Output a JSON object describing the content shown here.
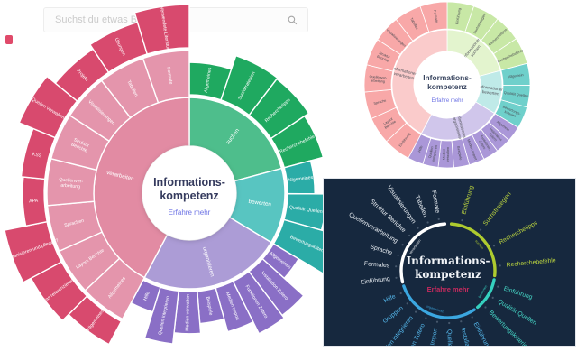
{
  "search": {
    "placeholder": "Suchst du etwas Bestimmtes?"
  },
  "logo": {
    "name": "brand-mark",
    "color": "#E04A6A"
  },
  "chart_data": [
    {
      "type": "sunburst",
      "id": "main",
      "theme": "light",
      "title_lines": [
        "Informations-",
        "kompetenz"
      ],
      "center_link": "Erfahre mehr",
      "title_color": "#353B5E",
      "link_color": "#6C72E4",
      "sections": [
        {
          "name": "suchen",
          "span_deg": 75,
          "colors": {
            "inner": "#4EBE8C",
            "outer": "#1FA960"
          },
          "children": [
            {
              "label": "Allgemeines",
              "len": 0.5
            },
            {
              "label": "Suchstrategien",
              "len": 0.72
            },
            {
              "label": "Recherchetipps",
              "len": 0.7
            },
            {
              "label": "Recherchebefehle",
              "len": 0.62
            }
          ]
        },
        {
          "name": "bewerten",
          "span_deg": 46,
          "colors": {
            "inner": "#58C5C1",
            "outer": "#2BACA7"
          },
          "children": [
            {
              "label": "Allgemeines",
              "len": 0.42
            },
            {
              "label": "Qualität Quellen",
              "len": 0.6
            },
            {
              "label": "Bewertungskriterien",
              "len": 1.0
            }
          ]
        },
        {
          "name": "organisieren",
          "span_deg": 87,
          "colors": {
            "inner": "#AC9CD6",
            "outer": "#8A6FC6"
          },
          "children": [
            {
              "label": "Allgemeines",
              "len": 0.45
            },
            {
              "label": "Installation Zotero",
              "len": 0.85
            },
            {
              "label": "Funktionen Zotero",
              "len": 0.9
            },
            {
              "label": "Medien Import",
              "len": 0.7
            },
            {
              "label": "Beispiele",
              "len": 0.5
            },
            {
              "label": "Medien verwalten",
              "len": 0.65
            },
            {
              "label": "Quellen integrieren",
              "len": 0.82
            },
            {
              "label": "Hilfe",
              "len": 0.4
            }
          ]
        },
        {
          "name": "verarbeiten",
          "span_deg": 152,
          "colors": {
            "inner": "#E28BA3",
            "mid": "#E495AC",
            "outer": "#D84A6E"
          },
          "mid": [
            "Allgemeines",
            "Layout Berichte",
            "Sprachen",
            "Quellenver-\narbeitung",
            "Struktur\nBerichte",
            "Visualisierungen",
            "Tabellen",
            "Formate"
          ],
          "children": [
            {
              "label": "Allgemeines",
              "len": 0.6
            },
            {
              "label": "Was referenzieren?",
              "len": 0.8
            },
            {
              "label": "Organisieren und pflegen?",
              "len": 1.0
            },
            {
              "label": "APA",
              "len": 0.5
            },
            {
              "label": "KSS",
              "len": 0.55
            },
            {
              "label": "Quellen verwalten",
              "len": 0.9
            },
            {
              "label": "Projekt",
              "len": 0.65
            },
            {
              "label": "Übungen",
              "len": 0.77
            },
            {
              "label": "Verwendete Literatur",
              "len": 1.0
            }
          ]
        }
      ]
    },
    {
      "type": "sunburst",
      "id": "pastel",
      "theme": "pastel",
      "title_lines": [
        "Informations-",
        "kompetenz"
      ],
      "center_link": "Erfahre mehr",
      "title_color": "#3A4660",
      "link_color": "#6C72E4",
      "inner_label_color": "#55565E",
      "child_label_color": "#4A4B52",
      "sections": [
        {
          "name": "suchen",
          "label": "Informationen\nsuchen",
          "span_deg": 75,
          "colors": {
            "inner": "#E3F4CE",
            "outer": "#C8E8A6"
          },
          "children": [
            "Einführung",
            "Suchstrategien",
            "Recherchetipps",
            "Recherchebefehle"
          ]
        },
        {
          "name": "bewerten",
          "label": "Informationen\nbewerten",
          "span_deg": 46,
          "colors": {
            "inner": "#BFEAE8",
            "outer": "#6FD0CB"
          },
          "children": [
            "Allgemein",
            "Qualität Quellen",
            "Bewertungs-\nkriterien"
          ]
        },
        {
          "name": "organisieren",
          "label": "Informationen\norganisieren",
          "span_deg": 87,
          "colors": {
            "inner": "#D0C6EB",
            "outer": "#AA97D8"
          },
          "children": [
            "Allgemein",
            "Installation\nZotero",
            "Funktionen\nZotero",
            "Medien Import",
            "Beispiele",
            "Medien\nverwalten",
            "Quellen\nintegrieren",
            "Hilfe"
          ]
        },
        {
          "name": "verarbeiten",
          "label": "Informationen\nverarbeiten",
          "span_deg": 152,
          "colors": {
            "inner": "#FACBCB",
            "outer": "#F8A8A8"
          },
          "children": [
            "Einführung",
            "Layout\nBerichte",
            "Sprache",
            "Quellenver-\narbeitung",
            "Struktur\nBerichte",
            "Visualisierungen",
            "Tabellen",
            "Formate"
          ]
        }
      ]
    },
    {
      "type": "radial-topic-wheel",
      "id": "dark",
      "theme": "dark",
      "bg": "#16283E",
      "title_lines": [
        "Informations-",
        "kompetenz"
      ],
      "center_link": "Erfahre mehr",
      "title_color": "#F2F5F8",
      "link_color": "#C72A5E",
      "sections": [
        {
          "name": "suchen",
          "a0": 4,
          "a1": 96,
          "color": "#AECB2F",
          "text_color": "#BCD53F",
          "labels": [
            "Einführung",
            "Suchstrategien",
            "Recherchetipps",
            "Recherchebefehle"
          ]
        },
        {
          "name": "bewerten",
          "a0": 101,
          "a1": 141,
          "color": "#35D1BF",
          "text_color": "#46D9C8",
          "labels": [
            "Einführung",
            "Qualität Quellen",
            "Bewertungskriterien"
          ]
        },
        {
          "name": "organisieren",
          "a0": 146,
          "a1": 251,
          "color": "#3BA7E0",
          "text_color": "#55B8EC",
          "labels": [
            "Einführung",
            "Installation Zotero",
            "Quellen Zotero",
            "Medien Import",
            "Funktionen Zotero",
            "Quellen integrieren",
            "Gruppen",
            "Hilfe"
          ]
        },
        {
          "name": "verarbeiten",
          "a0": 256,
          "a1": 356,
          "color": "#FFFFFF",
          "text_color": "#E9EEF3",
          "labels": [
            "Einführung",
            "Formales",
            "Sprache",
            "Quellenverarbeitung",
            "Struktur Berichte",
            "Visualisierungen",
            "Tabellen",
            "Formate"
          ]
        }
      ]
    }
  ]
}
